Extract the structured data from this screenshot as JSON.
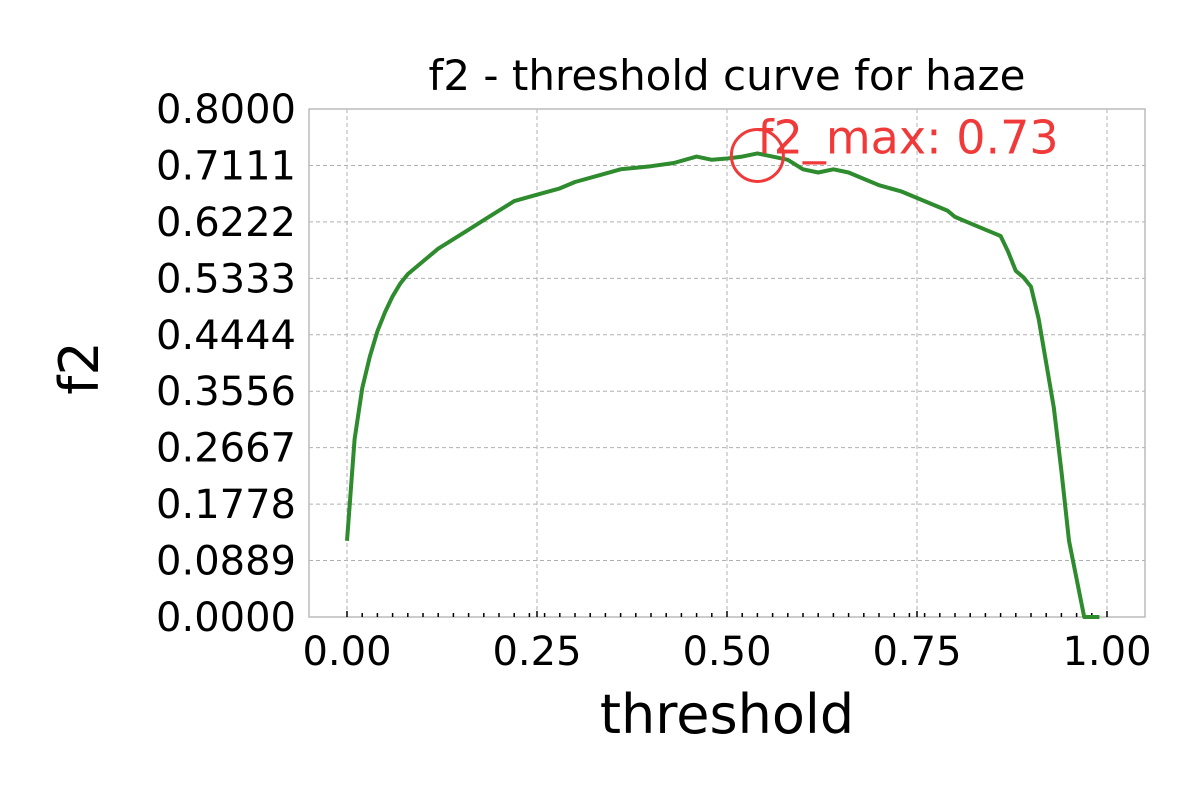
{
  "chart_data": {
    "type": "line",
    "title": "f2 - threshold curve for haze",
    "xlabel": "threshold",
    "ylabel": "f2",
    "xlim": [
      -0.05,
      1.05
    ],
    "ylim": [
      0.0,
      0.8
    ],
    "xticks": [
      "0.00",
      "0.25",
      "0.50",
      "0.75",
      "1.00"
    ],
    "yticks": [
      "0.0000",
      "0.0889",
      "0.1778",
      "0.2667",
      "0.3556",
      "0.4444",
      "0.5333",
      "0.6222",
      "0.7111",
      "0.8000"
    ],
    "grid": true,
    "series": [
      {
        "color": "#2e8b2e",
        "x": [
          0.0,
          0.01,
          0.02,
          0.03,
          0.04,
          0.05,
          0.06,
          0.07,
          0.08,
          0.1,
          0.12,
          0.14,
          0.16,
          0.18,
          0.2,
          0.22,
          0.25,
          0.28,
          0.3,
          0.33,
          0.36,
          0.4,
          0.43,
          0.46,
          0.48,
          0.5,
          0.52,
          0.54,
          0.56,
          0.58,
          0.6,
          0.62,
          0.64,
          0.66,
          0.68,
          0.7,
          0.73,
          0.76,
          0.79,
          0.8,
          0.82,
          0.84,
          0.85,
          0.86,
          0.87,
          0.88,
          0.89,
          0.9,
          0.91,
          0.92,
          0.93,
          0.94,
          0.95,
          0.96,
          0.97,
          0.98,
          0.99
        ],
        "y": [
          0.12,
          0.28,
          0.36,
          0.41,
          0.45,
          0.48,
          0.505,
          0.525,
          0.54,
          0.56,
          0.58,
          0.595,
          0.61,
          0.625,
          0.64,
          0.655,
          0.665,
          0.675,
          0.685,
          0.695,
          0.705,
          0.71,
          0.715,
          0.725,
          0.72,
          0.722,
          0.725,
          0.73,
          0.725,
          0.72,
          0.705,
          0.7,
          0.705,
          0.7,
          0.69,
          0.68,
          0.67,
          0.655,
          0.64,
          0.63,
          0.62,
          0.61,
          0.605,
          0.6,
          0.575,
          0.545,
          0.535,
          0.52,
          0.47,
          0.4,
          0.33,
          0.23,
          0.12,
          0.06,
          0.0,
          0.0,
          0.0
        ]
      }
    ],
    "annotation": {
      "text": "f2_max: 0.73",
      "x": 0.54,
      "y": 0.73,
      "color": "#f03a3a"
    }
  }
}
